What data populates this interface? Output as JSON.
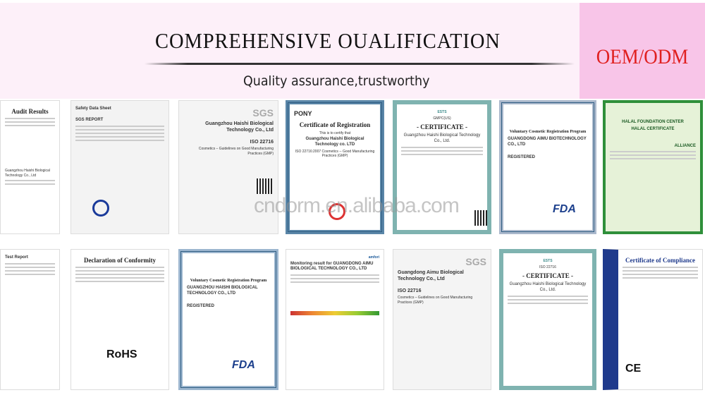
{
  "header": {
    "title": "COMPREHENSIVE OUALIFICATION",
    "subtitle": "Quality assurance,trustworthy",
    "badge": "OEM/ODM"
  },
  "watermark": "cndorm.en.alibaba.com",
  "colors": {
    "background": "#fdf0f9",
    "badge_bg": "#f8c5e8",
    "badge_text": "#e02020"
  },
  "certificates": [
    {
      "title": "Audit Results",
      "company": "Guangzhou Haishi Biological Technology Co., Ltd"
    },
    {
      "title": "Safety Data Sheet",
      "subtitle": "SGS REPORT"
    },
    {
      "logo": "SGS",
      "company": "Guangzhou Haishi Biological Technology Co., Ltd",
      "standard": "ISO 22716",
      "scope": "Cosmetics – Guidelines on Good Manufacturing Practices (GMP)"
    },
    {
      "logo": "PONY",
      "title": "Certificate of Registration",
      "line1": "This is to certify that",
      "company": "Guangzhou Haishi Biological Technology co. LTD",
      "standard": "ISO 22716:2007 Cosmetics -- Good Manufacturing Practices (GMP)"
    },
    {
      "logo": "ESTS",
      "code": "GMPC(US)",
      "title": "- CERTIFICATE -",
      "company": "Guangzhou Haishi Biological Technology Co., Ltd."
    },
    {
      "title": "Voluntary Cosmetic Registration Program",
      "company": "GUANGDONG AIMU BIOTECHNOLOGY CO., LTD",
      "status": "REGISTERED",
      "logo": "FDA"
    },
    {
      "title": "HALAL FOUNDATION CENTER",
      "subtitle": "HALAL CERTIFICATE",
      "logo": "ALLIANCE"
    },
    {
      "title": "Test Report"
    },
    {
      "title": "Declaration of Conformity",
      "logo": "RoHS"
    },
    {
      "title": "Voluntary Cosmetic Registration Program",
      "company": "GUANGZHOU HAISHI BIOLOGICAL TECHNOLOGY CO., LTD",
      "status": "REGISTERED",
      "logo": "FDA"
    },
    {
      "title": "Monitoring result for GUANGDONG AIMU BIOLOGICAL TECHNOLOGY CO., LTD",
      "logo": "amfori"
    },
    {
      "logo": "SGS",
      "company": "Guangdong Aimu Biological Technology Co., Ltd",
      "standard": "ISO 22716",
      "scope": "Cosmetics – Guidelines on Good Manufacturing Practices (GMP)"
    },
    {
      "logo": "ESTS",
      "code": "ISO 22716",
      "title": "- CERTIFICATE -",
      "company": "Guangzhou Haishi Biological Technology Co., Ltd."
    },
    {
      "title": "Certificate of Compliance",
      "logo": "CE"
    }
  ]
}
